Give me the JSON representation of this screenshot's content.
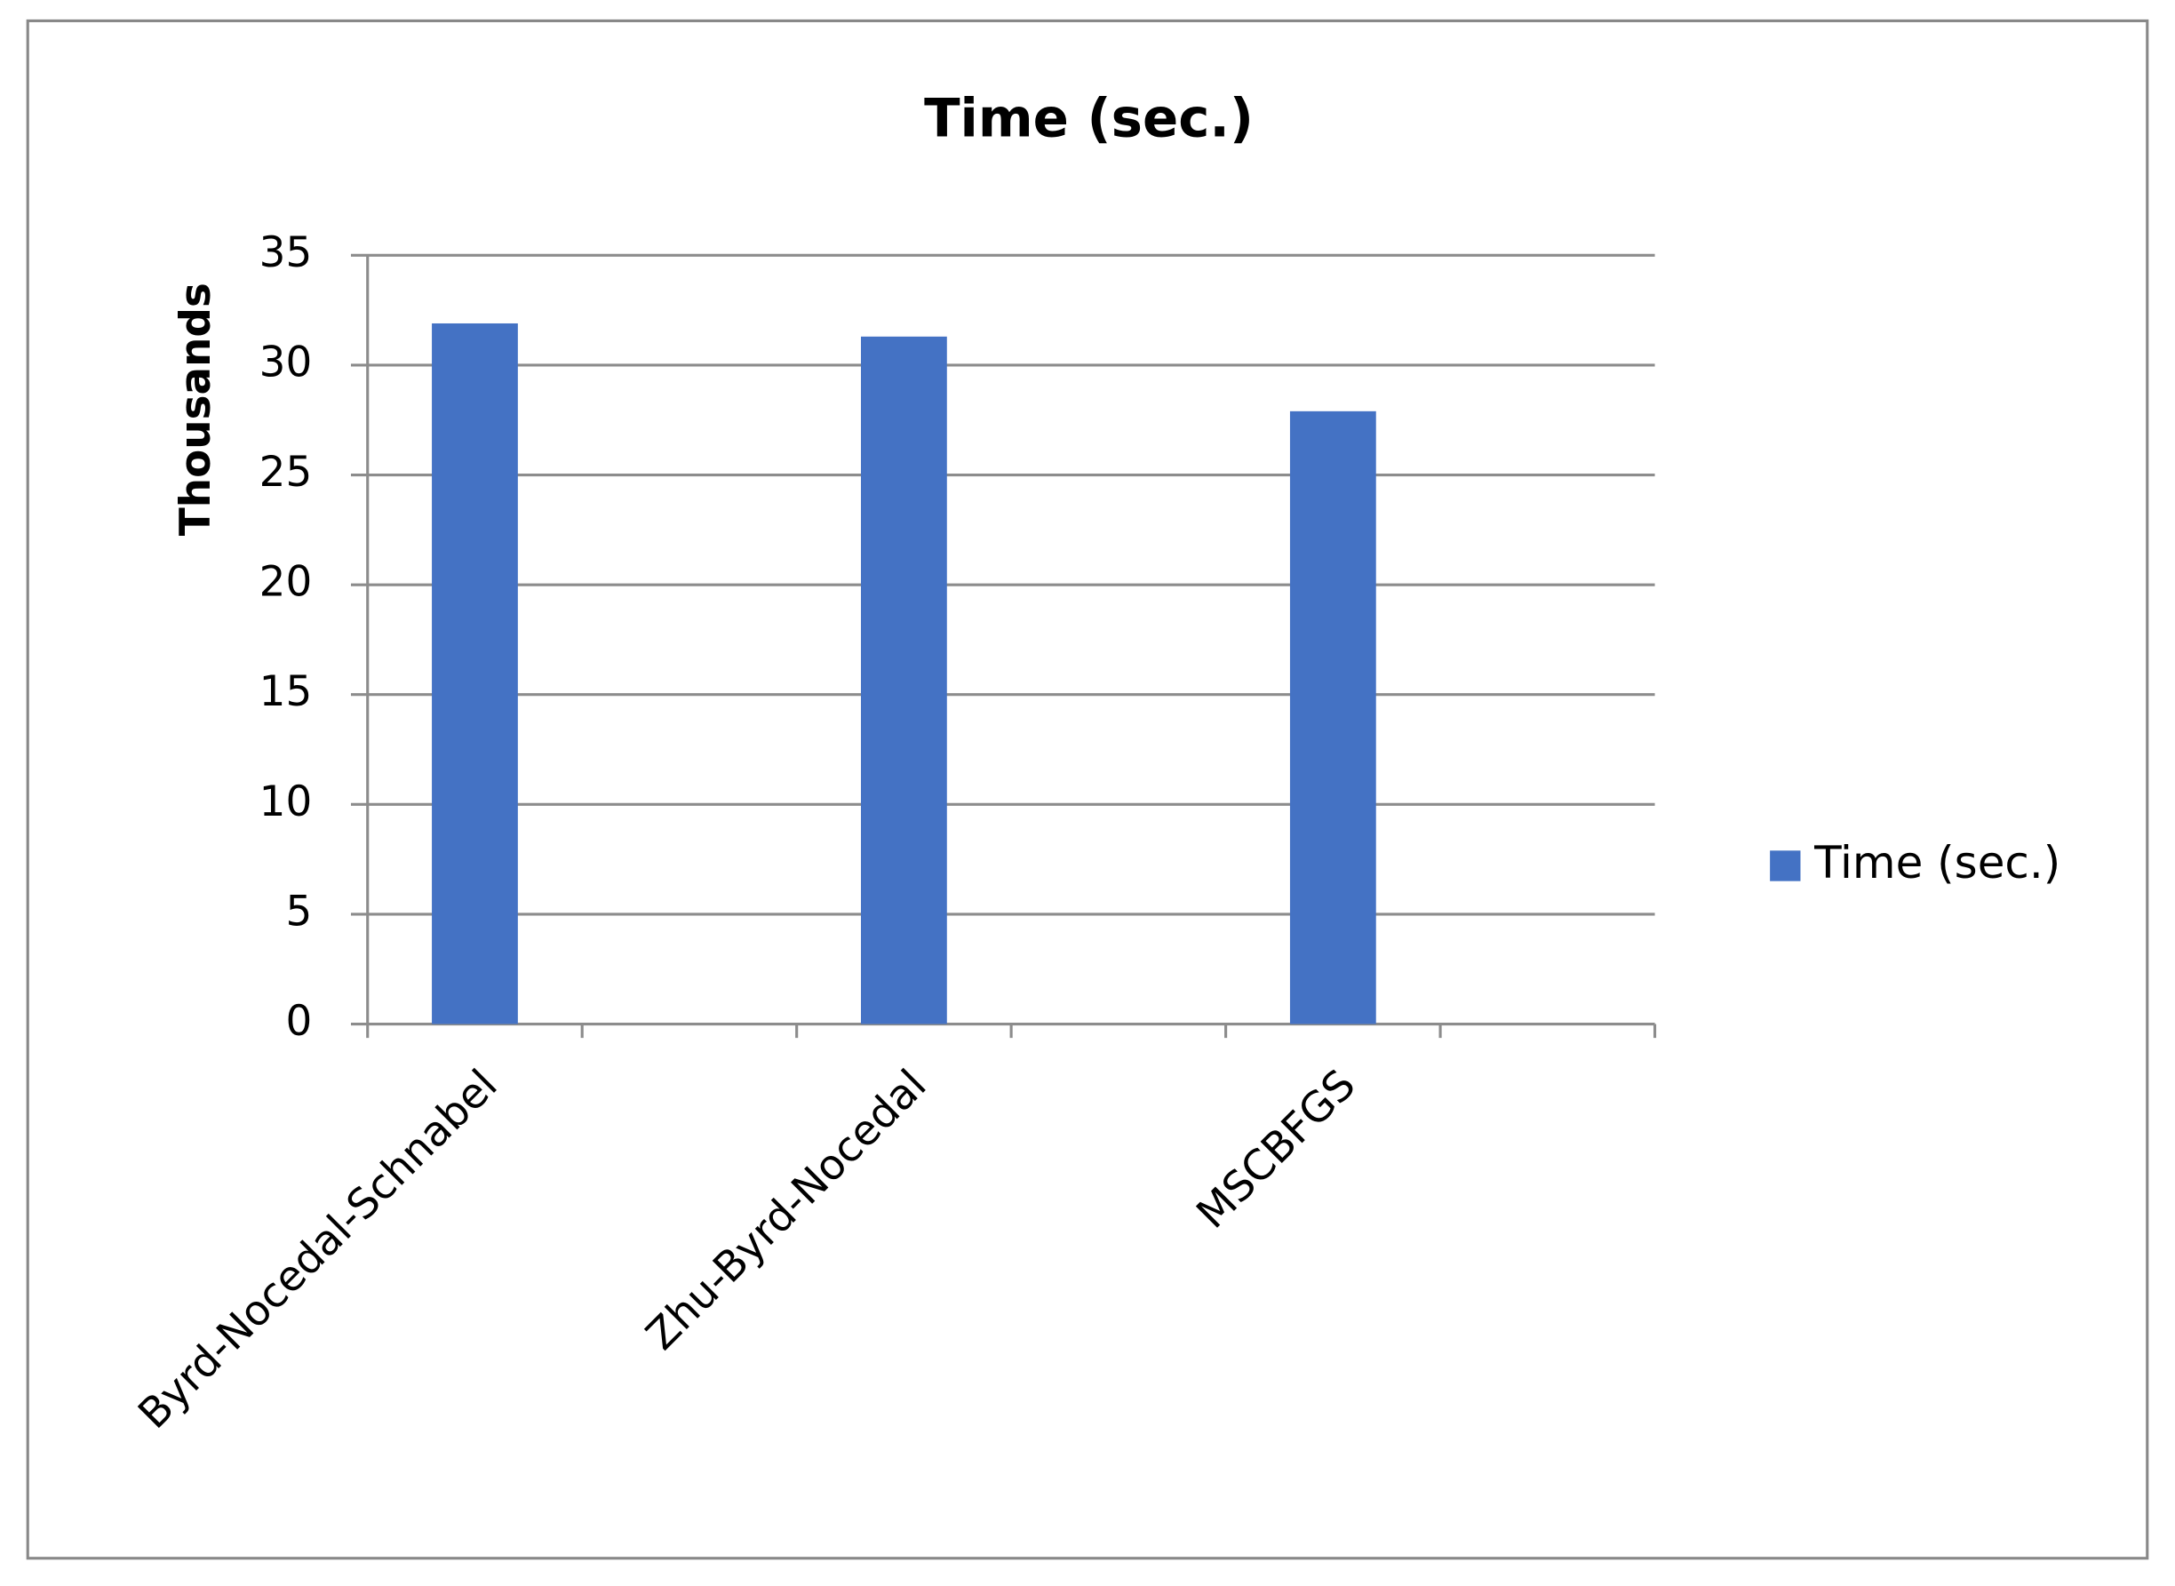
{
  "chart_data": {
    "type": "bar",
    "title": "Time (sec.)",
    "y_axis_label": "Thousands",
    "categories": [
      "Byrd-Nocedal-Schnabel",
      null,
      "Zhu-Byrd-Nocedal",
      null,
      "MSCBFGS",
      null
    ],
    "series": [
      {
        "name": "Time (sec.)",
        "color": "#4472c4",
        "values": [
          31.9,
          null,
          31.3,
          null,
          27.9,
          null
        ]
      }
    ],
    "ylim": [
      0,
      35
    ],
    "yticks": [
      0,
      5,
      10,
      15,
      20,
      25,
      30,
      35
    ],
    "grid": true,
    "legend": "right"
  }
}
